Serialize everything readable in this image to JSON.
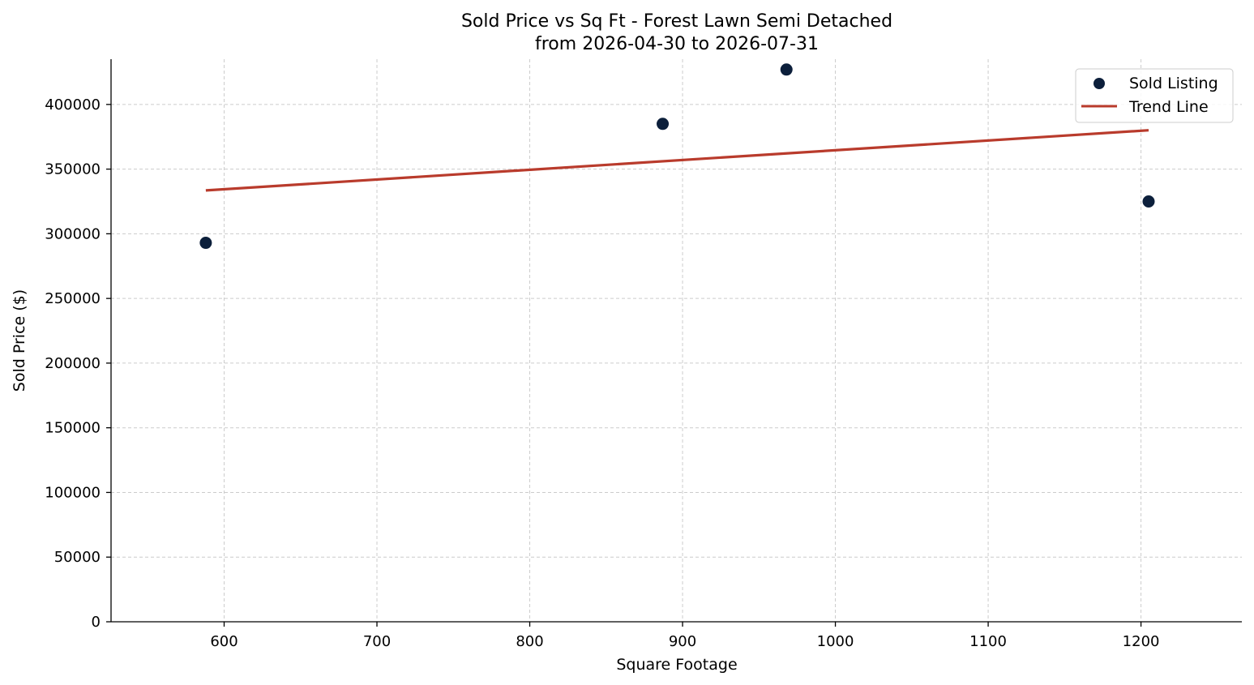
{
  "chart_data": {
    "type": "scatter",
    "title": "Sold Price vs Sq Ft - Forest Lawn Semi Detached",
    "subtitle": "from 2026-04-30 to 2026-07-31",
    "xlabel": "Square Footage",
    "ylabel": "Sold Price ($)",
    "xlim": [
      526,
      1266
    ],
    "ylim": [
      0,
      435000
    ],
    "xticks": [
      600,
      700,
      800,
      900,
      1000,
      1100,
      1200
    ],
    "yticks": [
      0,
      50000,
      100000,
      150000,
      200000,
      250000,
      300000,
      350000,
      400000
    ],
    "grid": true,
    "legend_position": "top-right",
    "series": [
      {
        "name": "Sold Listing",
        "type": "scatter",
        "color": "#0c1f3b",
        "points": [
          {
            "x": 588,
            "y": 293000
          },
          {
            "x": 887,
            "y": 385000
          },
          {
            "x": 968,
            "y": 427000
          },
          {
            "x": 1205,
            "y": 325000
          }
        ]
      },
      {
        "name": "Trend Line",
        "type": "line",
        "color": "#b93b2c",
        "points": [
          {
            "x": 588,
            "y": 333500
          },
          {
            "x": 1205,
            "y": 380000
          }
        ]
      }
    ]
  }
}
